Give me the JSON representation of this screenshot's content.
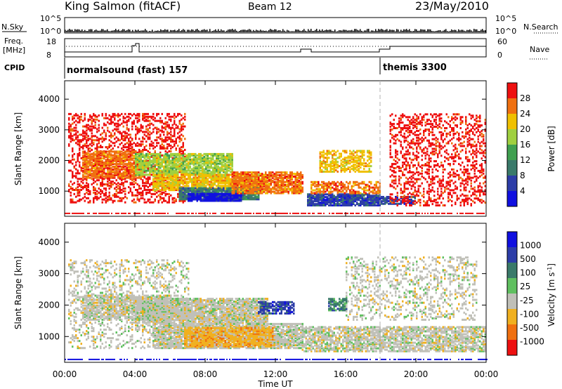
{
  "header": {
    "station": "King Salmon (fitACF)",
    "beam": "Beam 12",
    "date": "23/May/2010"
  },
  "top_panels": {
    "nsky_label": "N.Sky",
    "nsky_ticks": [
      "10^5",
      "10^0"
    ],
    "nsearch_label": "N.Search",
    "nsearch_ticks": [
      "10^5",
      "10^0"
    ],
    "freq_label_line1": "Freq.",
    "freq_label_line2": "[MHz]",
    "freq_ticks": [
      "18",
      "8"
    ],
    "nave_label": "Nave",
    "nave_ticks": [
      "60",
      "0"
    ],
    "cpid_label": "CPID",
    "cpid_segments": [
      {
        "label": "normalsound (fast) 157",
        "start_hour": 0
      },
      {
        "label": "themis 3300",
        "start_hour": 18
      }
    ]
  },
  "colors": {
    "power_scale": [
      "#1010e0",
      "#2d3da8",
      "#3a7a6a",
      "#40a050",
      "#a0d040",
      "#f0c000",
      "#f07010",
      "#ee1010"
    ],
    "velocity_scale": [
      "#1010e0",
      "#2d3da8",
      "#3a7a6a",
      "#60c060",
      "#c0c0b8",
      "#f0b020",
      "#f07010",
      "#ee1010"
    ]
  },
  "chart_data": [
    {
      "type": "heatmap",
      "id": "power",
      "title": "",
      "xlabel": "",
      "ylabel": "Slant Range [km]",
      "colorbar_label": "Power [dB]",
      "colorbar_ticks": [
        "28",
        "24",
        "20",
        "16",
        "12",
        "8",
        "4"
      ],
      "y_ticks": [
        "4000",
        "3000",
        "2000",
        "1000"
      ],
      "ylim": [
        180,
        4600
      ],
      "xlim_hours": [
        0,
        24
      ],
      "patches": [
        {
          "t0": 0.2,
          "t1": 6.8,
          "r0": 600,
          "r1": 3500,
          "color_index": 0,
          "density": 0.35
        },
        {
          "t0": 1.0,
          "t1": 4.5,
          "r0": 1400,
          "r1": 2300,
          "color_index": 1,
          "density": 0.7
        },
        {
          "t0": 4.0,
          "t1": 9.5,
          "r0": 1500,
          "r1": 2200,
          "color_index": 3,
          "density": 0.8
        },
        {
          "t0": 5.0,
          "t1": 11.5,
          "r0": 1000,
          "r1": 1500,
          "color_index": 2,
          "density": 0.8
        },
        {
          "t0": 6.5,
          "t1": 11.0,
          "r0": 700,
          "r1": 1100,
          "color_index": 5,
          "density": 0.9
        },
        {
          "t0": 7.0,
          "t1": 10.0,
          "r0": 650,
          "r1": 900,
          "color_index": 7,
          "density": 0.9
        },
        {
          "t0": 9.5,
          "t1": 13.5,
          "r0": 900,
          "r1": 1600,
          "color_index": 1,
          "density": 0.8
        },
        {
          "t0": 13.8,
          "t1": 18.0,
          "r0": 500,
          "r1": 900,
          "color_index": 6,
          "density": 0.9
        },
        {
          "t0": 14.0,
          "t1": 18.0,
          "r0": 900,
          "r1": 1300,
          "color_index": 1,
          "density": 0.6
        },
        {
          "t0": 14.5,
          "t1": 17.5,
          "r0": 1600,
          "r1": 2300,
          "color_index": 2,
          "density": 0.55
        },
        {
          "t0": 18.0,
          "t1": 20.0,
          "r0": 550,
          "r1": 800,
          "color_index": 6,
          "density": 0.75
        },
        {
          "t0": 18.5,
          "t1": 24.0,
          "r0": 500,
          "r1": 3500,
          "color_index": 0,
          "density": 0.3
        }
      ]
    },
    {
      "type": "heatmap",
      "id": "velocity",
      "title": "",
      "xlabel": "Time UT",
      "ylabel": "Slant Range [km]",
      "colorbar_label": "Velocity [m s^-1]",
      "colorbar_ticks": [
        "1000",
        "500",
        "100",
        "25",
        "-25",
        "-100",
        "-500",
        "-1000"
      ],
      "y_ticks": [
        "4000",
        "3000",
        "2000",
        "1000"
      ],
      "x_ticks": [
        "00:00",
        "04:00",
        "08:00",
        "12:00",
        "16:00",
        "20:00",
        "00:00"
      ],
      "ylim": [
        180,
        4600
      ],
      "xlim_hours": [
        0,
        24
      ],
      "patches": [
        {
          "t0": 0.2,
          "t1": 7.0,
          "r0": 600,
          "r1": 3400,
          "color_index": 4,
          "density": 0.25
        },
        {
          "t0": 1.0,
          "t1": 6.0,
          "r0": 1500,
          "r1": 2300,
          "color_index": 4,
          "density": 0.7
        },
        {
          "t0": 4.0,
          "t1": 11.5,
          "r0": 1400,
          "r1": 2200,
          "color_index": 4,
          "density": 0.85
        },
        {
          "t0": 5.0,
          "t1": 13.5,
          "r0": 600,
          "r1": 1400,
          "color_index": 4,
          "density": 0.8
        },
        {
          "t0": 6.8,
          "t1": 11.8,
          "r0": 650,
          "r1": 1250,
          "color_index": 5,
          "density": 0.9
        },
        {
          "t0": 11.0,
          "t1": 13.0,
          "r0": 1700,
          "r1": 2100,
          "color_index": 1,
          "density": 0.7
        },
        {
          "t0": 13.5,
          "t1": 24.0,
          "r0": 500,
          "r1": 1300,
          "color_index": 4,
          "density": 0.7
        },
        {
          "t0": 15.0,
          "t1": 16.0,
          "r0": 1800,
          "r1": 2200,
          "color_index": 2,
          "density": 0.7
        },
        {
          "t0": 16.0,
          "t1": 23.5,
          "r0": 1500,
          "r1": 3500,
          "color_index": 4,
          "density": 0.25
        }
      ]
    }
  ]
}
